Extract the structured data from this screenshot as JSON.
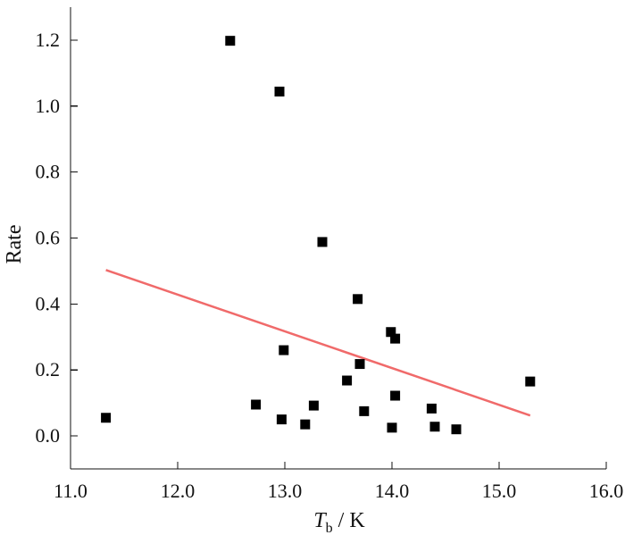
{
  "chart_data": {
    "type": "scatter",
    "title": "",
    "xlabel": {
      "main": "T",
      "sub": "b",
      "unit": " / K"
    },
    "ylabel": "Rate",
    "xlim": [
      11.0,
      16.0
    ],
    "ylim": [
      -0.1,
      1.3
    ],
    "xticks": [
      11.0,
      12.0,
      13.0,
      14.0,
      15.0,
      16.0
    ],
    "xtick_labels": [
      "11.0",
      "12.0",
      "13.0",
      "14.0",
      "15.0",
      "16.0"
    ],
    "yticks": [
      0.0,
      0.2,
      0.4,
      0.6,
      0.8,
      1.0,
      1.2
    ],
    "ytick_labels": [
      "0.0",
      "0.2",
      "0.4",
      "0.6",
      "0.8",
      "1.0",
      "1.2"
    ],
    "grid": false,
    "legend": "none",
    "series": [
      {
        "kind": "scatter",
        "color": "#000000",
        "points": [
          {
            "x": 11.33,
            "y": 0.055
          },
          {
            "x": 12.49,
            "y": 1.198
          },
          {
            "x": 12.73,
            "y": 0.095
          },
          {
            "x": 12.95,
            "y": 1.044
          },
          {
            "x": 12.97,
            "y": 0.05
          },
          {
            "x": 12.99,
            "y": 0.26
          },
          {
            "x": 13.19,
            "y": 0.035
          },
          {
            "x": 13.27,
            "y": 0.092
          },
          {
            "x": 13.35,
            "y": 0.588
          },
          {
            "x": 13.58,
            "y": 0.168
          },
          {
            "x": 13.68,
            "y": 0.415
          },
          {
            "x": 13.7,
            "y": 0.218
          },
          {
            "x": 13.74,
            "y": 0.075
          },
          {
            "x": 13.99,
            "y": 0.315
          },
          {
            "x": 14.0,
            "y": 0.025
          },
          {
            "x": 14.03,
            "y": 0.295
          },
          {
            "x": 14.03,
            "y": 0.122
          },
          {
            "x": 14.37,
            "y": 0.083
          },
          {
            "x": 14.4,
            "y": 0.028
          },
          {
            "x": 14.6,
            "y": 0.02
          },
          {
            "x": 15.29,
            "y": 0.165
          }
        ]
      },
      {
        "kind": "line",
        "color": "#f06a6a",
        "points": [
          {
            "x": 11.33,
            "y": 0.503
          },
          {
            "x": 15.29,
            "y": 0.062
          }
        ]
      }
    ]
  }
}
